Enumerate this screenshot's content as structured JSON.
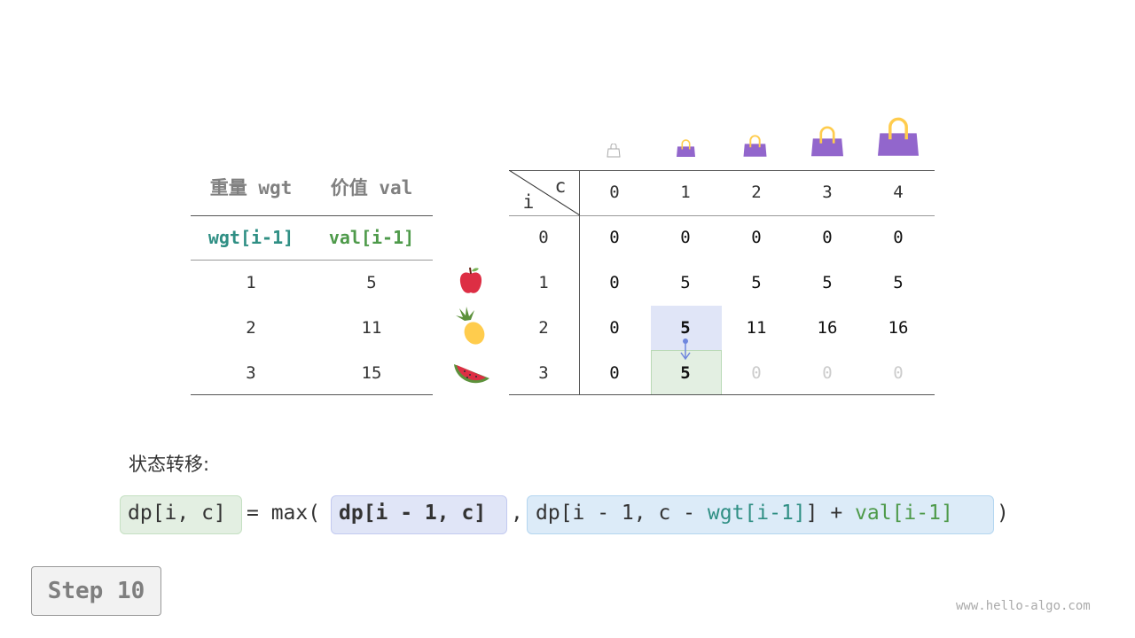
{
  "items_table": {
    "headers": [
      "重量 wgt",
      "价值 val"
    ],
    "subheaders": [
      "wgt[i-1]",
      "val[i-1]"
    ],
    "rows": [
      [
        "1",
        "5"
      ],
      [
        "2",
        "11"
      ],
      [
        "3",
        "15"
      ]
    ],
    "item_icons": [
      "apple-icon",
      "pineapple-icon",
      "watermelon-icon"
    ]
  },
  "dp_table": {
    "corner_row_label": "i",
    "corner_col_label": "c",
    "col_headers": [
      "0",
      "1",
      "2",
      "3",
      "4"
    ],
    "row_headers": [
      "0",
      "1",
      "2",
      "3"
    ],
    "rows": [
      [
        "0",
        "0",
        "0",
        "0",
        "0"
      ],
      [
        "0",
        "5",
        "5",
        "5",
        "5"
      ],
      [
        "0",
        "5",
        "11",
        "16",
        "16"
      ],
      [
        "0",
        "5",
        "0",
        "0",
        "0"
      ]
    ],
    "capacity_icons": [
      "empty-bag-icon",
      "bag-icon",
      "bag-icon",
      "bag-icon",
      "bag-icon"
    ],
    "highlight_source": {
      "row": 2,
      "col": 1,
      "color": "#e0e5f7"
    },
    "highlight_target": {
      "row": 3,
      "col": 1,
      "color": "#e3efe2"
    },
    "unfilled_cells": [
      [
        3,
        2
      ],
      [
        3,
        3
      ],
      [
        3,
        4
      ]
    ]
  },
  "transition_label": "状态转移:",
  "formula": {
    "lhs": "dp[i, c]",
    "eq_max": "= max(",
    "term1": "dp[i - 1, c]",
    "comma": ",",
    "term2_prefix": "dp[i - 1, c - ",
    "term2_wgt": "wgt[i-1]",
    "term2_mid": "] + ",
    "term2_val": "val[i-1]",
    "close": ")"
  },
  "step_label": "Step 10",
  "watermark": "www.hello-algo.com"
}
